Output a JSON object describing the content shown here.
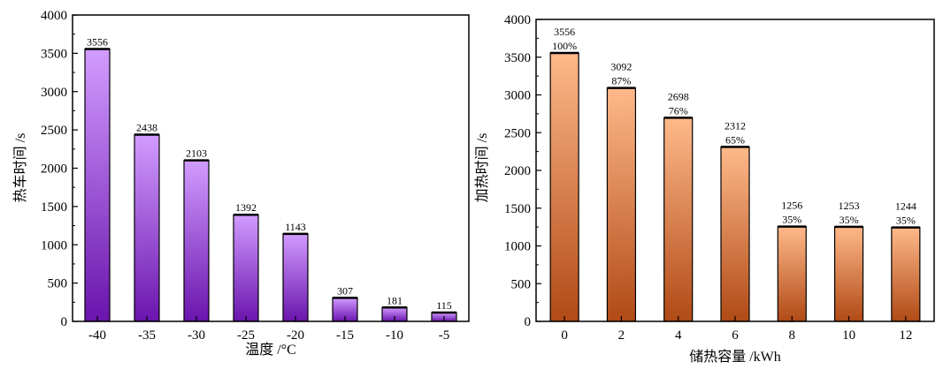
{
  "chart_data": [
    {
      "type": "bar",
      "title": "",
      "xlabel": "温度 /°C",
      "ylabel": "热车时间 /s",
      "categories": [
        "-40",
        "-35",
        "-30",
        "-25",
        "-20",
        "-15",
        "-10",
        "-5"
      ],
      "values": [
        3556,
        2438,
        2103,
        1392,
        1143,
        307,
        181,
        115
      ],
      "value_labels": [
        "3556",
        "2438",
        "2103",
        "1392",
        "1143",
        "307",
        "181",
        "115"
      ],
      "ylim": [
        0,
        4000
      ],
      "yticks": [
        0,
        500,
        1000,
        1500,
        2000,
        2500,
        3000,
        3500,
        4000
      ],
      "grid": false,
      "colors": {
        "top": "#d29cff",
        "bottom": "#6a14ad"
      }
    },
    {
      "type": "bar",
      "title": "",
      "xlabel": "储热容量 /kWh",
      "ylabel": "加热时间 /s",
      "categories": [
        "0",
        "2",
        "4",
        "6",
        "8",
        "10",
        "12"
      ],
      "values": [
        3556,
        3092,
        2698,
        2312,
        1256,
        1253,
        1244
      ],
      "value_labels": [
        "3556",
        "3092",
        "2698",
        "2312",
        "1256",
        "1253",
        "1244"
      ],
      "percent_labels": [
        "100%",
        "87%",
        "76%",
        "65%",
        "35%",
        "35%",
        "35%"
      ],
      "ylim": [
        0,
        4000
      ],
      "yticks": [
        0,
        500,
        1000,
        1500,
        2000,
        2500,
        3000,
        3500,
        4000
      ],
      "grid": false,
      "colors": {
        "top": "#ffb98a",
        "bottom": "#b04a16"
      }
    }
  ]
}
